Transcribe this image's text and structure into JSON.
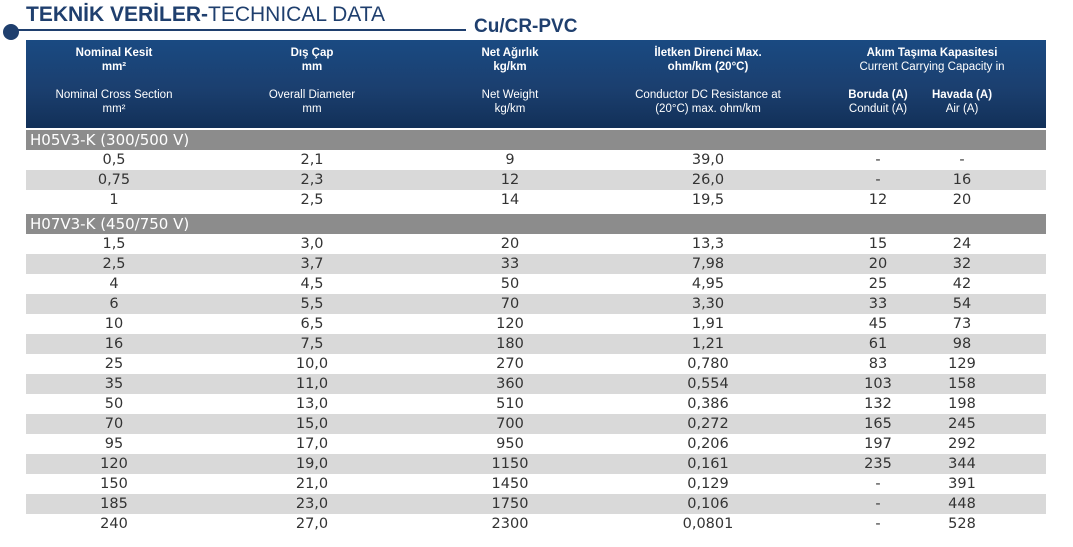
{
  "title": {
    "bold": "TEKNİK VERİLER-",
    "normal": "TECHNICAL DATA"
  },
  "subtitle": "Cu/CR-PVC",
  "header": {
    "col0": {
      "tr": "Nominal Kesit",
      "tr_unit": "mm²",
      "en": "Nominal Cross Section",
      "en_unit": "mm²"
    },
    "col1": {
      "tr": "Dış Çap",
      "tr_unit": "mm",
      "en": "Overall Diameter",
      "en_unit": "mm"
    },
    "col2": {
      "tr": "Net Ağırlık",
      "tr_unit": "kg/km",
      "en": "Net Weight",
      "en_unit": "kg/km"
    },
    "col3": {
      "tr": "İletken Direnci Max.",
      "tr_unit": "ohm/km (20°C)",
      "en": "Conductor DC Resistance at",
      "en_unit": "(20°C) max. ohm/km"
    },
    "col4": {
      "tr": "Akım Taşıma Kapasitesi",
      "en": "Current Carrying Capacity in",
      "conduit_tr": "Boruda (A)",
      "conduit_en": "Conduit (A)",
      "air_tr": "Havada (A)",
      "air_en": "Air (A)"
    }
  },
  "sections": [
    {
      "label": "H05V3-K (300/500 V)",
      "rows": [
        [
          "0,5",
          "2,1",
          "9",
          "39,0",
          "-",
          "-"
        ],
        [
          "0,75",
          "2,3",
          "12",
          "26,0",
          "-",
          "16"
        ],
        [
          "1",
          "2,5",
          "14",
          "19,5",
          "12",
          "20"
        ]
      ]
    },
    {
      "label": "H07V3-K (450/750 V)",
      "rows": [
        [
          "1,5",
          "3,0",
          "20",
          "13,3",
          "15",
          "24"
        ],
        [
          "2,5",
          "3,7",
          "33",
          "7,98",
          "20",
          "32"
        ],
        [
          "4",
          "4,5",
          "50",
          "4,95",
          "25",
          "42"
        ],
        [
          "6",
          "5,5",
          "70",
          "3,30",
          "33",
          "54"
        ],
        [
          "10",
          "6,5",
          "120",
          "1,91",
          "45",
          "73"
        ],
        [
          "16",
          "7,5",
          "180",
          "1,21",
          "61",
          "98"
        ],
        [
          "25",
          "10,0",
          "270",
          "0,780",
          "83",
          "129"
        ],
        [
          "35",
          "11,0",
          "360",
          "0,554",
          "103",
          "158"
        ],
        [
          "50",
          "13,0",
          "510",
          "0,386",
          "132",
          "198"
        ],
        [
          "70",
          "15,0",
          "700",
          "0,272",
          "165",
          "245"
        ],
        [
          "95",
          "17,0",
          "950",
          "0,206",
          "197",
          "292"
        ],
        [
          "120",
          "19,0",
          "1150",
          "0,161",
          "235",
          "344"
        ],
        [
          "150",
          "21,0",
          "1450",
          "0,129",
          "-",
          "391"
        ],
        [
          "185",
          "23,0",
          "1750",
          "0,106",
          "-",
          "448"
        ],
        [
          "240",
          "27,0",
          "2300",
          "0,0801",
          "-",
          "528"
        ]
      ]
    }
  ],
  "colors": {
    "brand": "#1f3f6e",
    "header_bg": "#1b3f6f",
    "section_bg": "#8c8c8c",
    "row_shade": "#d9d9d9"
  }
}
